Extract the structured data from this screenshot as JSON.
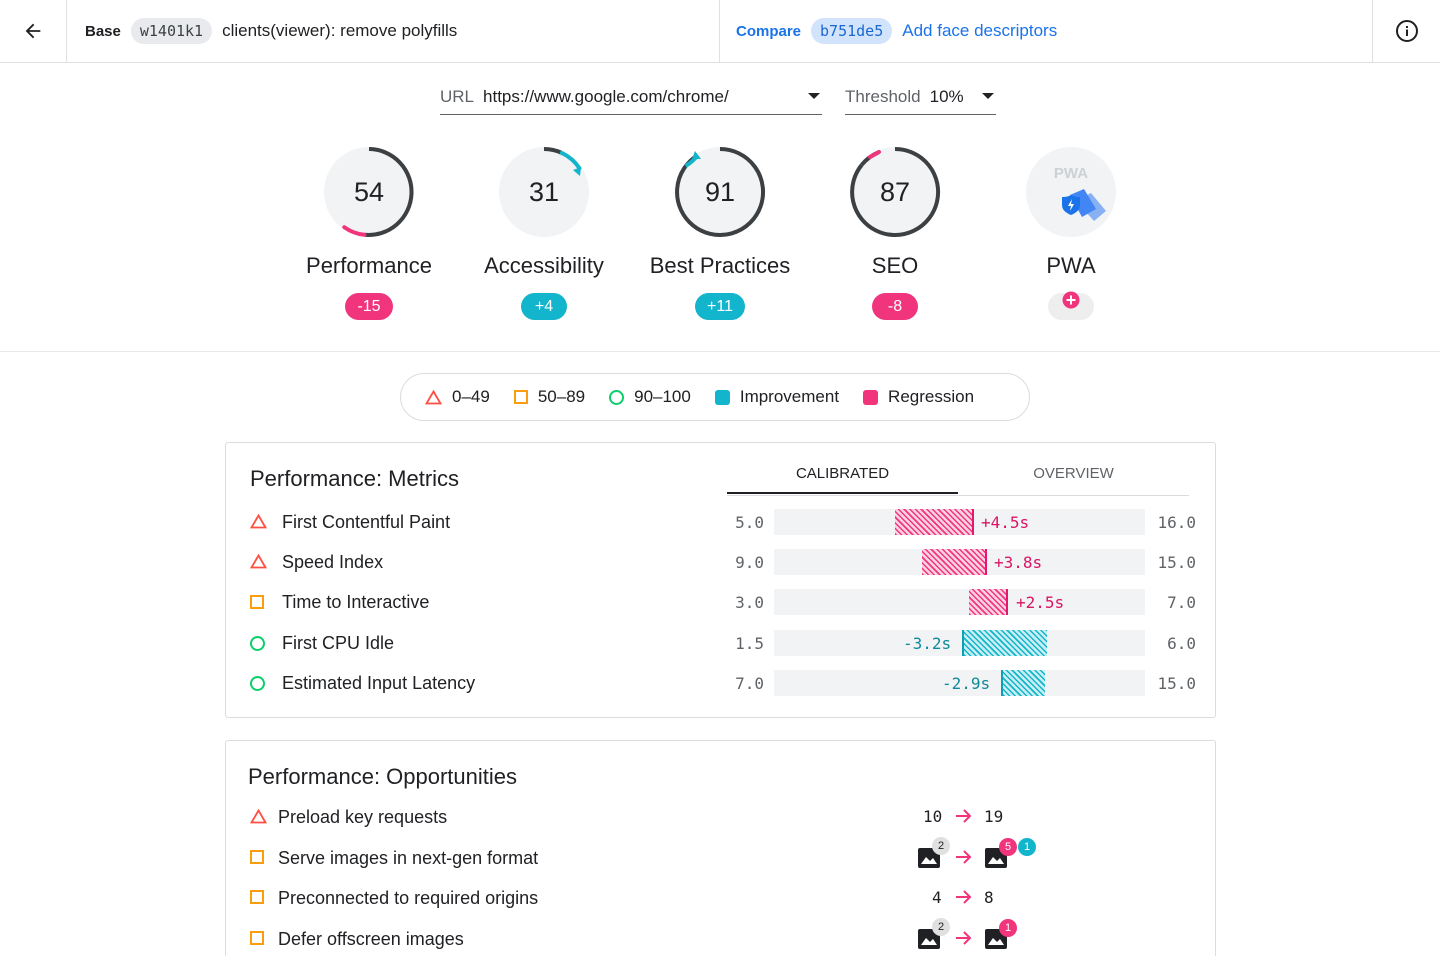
{
  "header": {
    "base_label": "Base",
    "base_hash": "w1401k1",
    "base_message": "clients(viewer): remove polyfills",
    "compare_label": "Compare",
    "compare_hash": "b751de5",
    "compare_message": "Add face descriptors"
  },
  "filters": {
    "url_label": "URL",
    "url_value": "https://www.google.com/chrome/",
    "threshold_label": "Threshold",
    "threshold_value": "10%"
  },
  "gauges": [
    {
      "name": "Performance",
      "score": "54",
      "delta": "-15",
      "delta_color": "#f0357d"
    },
    {
      "name": "Accessibility",
      "score": "31",
      "delta": "+4",
      "delta_color": "#12b5cb"
    },
    {
      "name": "Best Practices",
      "score": "91",
      "delta": "+11",
      "delta_color": "#12b5cb"
    },
    {
      "name": "SEO",
      "score": "87",
      "delta": "-8",
      "delta_color": "#f0357d"
    },
    {
      "name": "PWA",
      "badge_text": "PWA",
      "delta": "+"
    }
  ],
  "legend": {
    "low": "0–49",
    "mid": "50–89",
    "high": "90–100",
    "improvement": "Improvement",
    "regression": "Regression"
  },
  "metrics": {
    "title": "Performance: Metrics",
    "tab_calibrated": "CALIBRATED",
    "tab_overview": "OVERVIEW",
    "rows": [
      {
        "name": "First Contentful Paint",
        "min": "5.0",
        "max": "16.0",
        "delta": "+4.5s"
      },
      {
        "name": "Speed Index",
        "min": "9.0",
        "max": "15.0",
        "delta": "+3.8s"
      },
      {
        "name": "Time to Interactive",
        "min": "3.0",
        "max": "7.0",
        "delta": "+2.5s"
      },
      {
        "name": "First CPU Idle",
        "min": "1.5",
        "max": "6.0",
        "delta": "-3.2s"
      },
      {
        "name": "Estimated Input Latency",
        "min": "7.0",
        "max": "15.0",
        "delta": "-2.9s"
      }
    ]
  },
  "opportunities": {
    "title": "Performance: Opportunities",
    "rows": [
      {
        "name": "Preload key requests",
        "from": "10",
        "to": "19"
      },
      {
        "name": "Serve images in next-gen format",
        "from_badge": "2",
        "to_badge_a": "5",
        "to_badge_b": "1"
      },
      {
        "name": "Preconnected to required origins",
        "from": "4",
        "to": "8"
      },
      {
        "name": "Defer offscreen images",
        "from_badge": "2",
        "to_badge_a": "1"
      }
    ]
  },
  "colors": {
    "regression": "#f0357d",
    "improvement": "#12b5cb",
    "fail": "#ff4e42",
    "average": "#fa9e0f",
    "pass": "#0cce6b",
    "link": "#1a73e8"
  }
}
